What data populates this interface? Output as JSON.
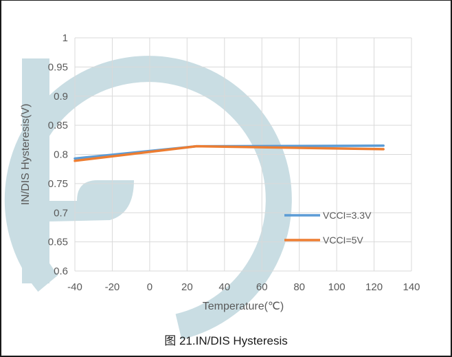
{
  "caption": "图 21.IN/DIS Hysteresis",
  "colors": {
    "watermark": "#c9dde3",
    "grid": "#d9d9d9",
    "text": "#595959"
  },
  "chart_data": {
    "type": "line",
    "title": "",
    "xlabel": "Temperature(℃)",
    "ylabel": "IN/DIS Hysteresis(V)",
    "xlim": [
      -40,
      140
    ],
    "ylim": [
      0.6,
      1.0
    ],
    "x_ticks": [
      -40,
      -20,
      0,
      20,
      40,
      60,
      80,
      100,
      120,
      140
    ],
    "x_tick_labels": [
      "-40",
      "-20",
      "0",
      "20",
      "40",
      "60",
      "80",
      "100",
      "120",
      "140"
    ],
    "y_ticks": [
      0.6,
      0.65,
      0.7,
      0.75,
      0.8,
      0.85,
      0.9,
      0.95,
      1.0
    ],
    "y_tick_labels": [
      "0.6",
      "0.65",
      "0.7",
      "0.75",
      "0.8",
      "0.85",
      "0.9",
      "0.95",
      "1"
    ],
    "grid": true,
    "legend_position": "inside-bottom-right",
    "series": [
      {
        "name": "VCCI=3.3V",
        "color": "#5b9bd5",
        "x": [
          -40,
          25,
          125
        ],
        "y": [
          0.793,
          0.814,
          0.815
        ]
      },
      {
        "name": "VCCI=5V",
        "color": "#ed7d31",
        "x": [
          -40,
          25,
          125
        ],
        "y": [
          0.789,
          0.814,
          0.809
        ]
      }
    ]
  }
}
